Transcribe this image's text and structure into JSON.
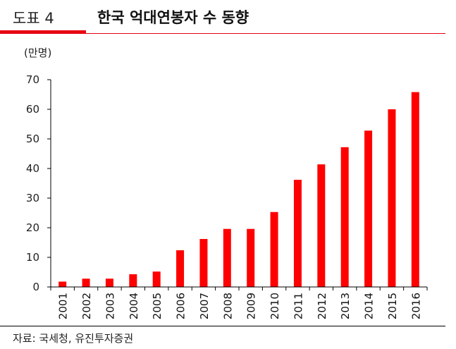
{
  "header": {
    "figure_label": "도표 4",
    "title": "한국 억대연봉자 수 동향",
    "accent_color": "#e60012"
  },
  "footer": {
    "source": "자료: 국세청, 유진투자증권"
  },
  "chart_data": {
    "type": "bar",
    "title": "한국 억대연봉자 수 동향",
    "unit_label": "(만명)",
    "xlabel": "",
    "ylabel": "",
    "categories": [
      "2001",
      "2002",
      "2003",
      "2004",
      "2005",
      "2006",
      "2007",
      "2008",
      "2009",
      "2010",
      "2011",
      "2012",
      "2013",
      "2014",
      "2015",
      "2016"
    ],
    "values": [
      1.8,
      2.8,
      2.8,
      4.3,
      5.2,
      12.4,
      16.2,
      19.6,
      19.6,
      25.3,
      36.2,
      41.4,
      47.2,
      52.8,
      60.0,
      65.8
    ],
    "ylim": [
      0,
      70
    ],
    "yticks": [
      0,
      10,
      20,
      30,
      40,
      50,
      60,
      70
    ],
    "bar_color": "#ff0000",
    "grid": false,
    "legend": "none"
  }
}
